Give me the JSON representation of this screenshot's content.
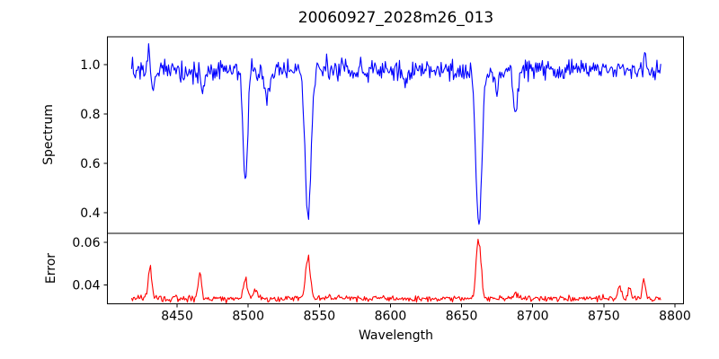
{
  "chart_data": {
    "type": "line",
    "title": "20060927_2028m26_013",
    "xlabel": "Wavelength",
    "grid": false,
    "legend": "none",
    "xlim": [
      8401,
      8806
    ],
    "x_ticks": [
      8450,
      8500,
      8550,
      8600,
      8650,
      8700,
      8750,
      8800
    ],
    "x_data_range": [
      8418,
      8790
    ],
    "n_points": 560,
    "panels": [
      {
        "name": "spectrum",
        "ylabel": "Spectrum",
        "color": "#0000ff",
        "ylim": [
          0.316,
          1.113
        ],
        "y_ticks": [
          1.0,
          0.8,
          0.6,
          0.4
        ],
        "y_tick_labels": [
          "1.0",
          "0.8",
          "0.6",
          "0.4"
        ],
        "continuum": 0.978,
        "noise_sigma": 0.021,
        "absorption_lines": [
          {
            "wavelength": 8498.0,
            "depth": 0.45,
            "sigma": 1.6
          },
          {
            "wavelength": 8542.1,
            "depth": 0.6,
            "sigma": 2.1
          },
          {
            "wavelength": 8662.1,
            "depth": 0.63,
            "sigma": 2.1
          },
          {
            "wavelength": 8513.0,
            "depth": 0.12,
            "sigma": 1.5
          },
          {
            "wavelength": 8688.0,
            "depth": 0.165,
            "sigma": 1.6
          },
          {
            "wavelength": 8675.0,
            "depth": 0.08,
            "sigma": 1.2
          },
          {
            "wavelength": 8468.0,
            "depth": 0.09,
            "sigma": 1.3
          },
          {
            "wavelength": 8433.0,
            "depth": 0.07,
            "sigma": 1.2
          },
          {
            "wavelength": 8610.0,
            "depth": 0.05,
            "sigma": 1.5
          },
          {
            "wavelength": 8582.0,
            "depth": 0.04,
            "sigma": 1.2
          }
        ],
        "emission_spikes": [
          {
            "wavelength": 8430.0,
            "height": 0.09,
            "sigma": 0.7
          },
          {
            "wavelength": 8779.0,
            "height": 0.08,
            "sigma": 0.7
          }
        ]
      },
      {
        "name": "error",
        "ylabel": "Error",
        "color": "#ff0000",
        "ylim": [
          0.031,
          0.0643
        ],
        "y_ticks": [
          0.06,
          0.04
        ],
        "y_tick_labels": [
          "0.06",
          "0.04"
        ],
        "baseline": 0.0335,
        "noise_sigma": 0.0007,
        "peaks": [
          {
            "wavelength": 8431.0,
            "height": 0.014,
            "sigma": 1.2
          },
          {
            "wavelength": 8466.0,
            "height": 0.011,
            "sigma": 1.2
          },
          {
            "wavelength": 8498.0,
            "height": 0.009,
            "sigma": 1.5
          },
          {
            "wavelength": 8505.0,
            "height": 0.0035,
            "sigma": 2.0
          },
          {
            "wavelength": 8542.0,
            "height": 0.0185,
            "sigma": 1.7
          },
          {
            "wavelength": 8662.0,
            "height": 0.0285,
            "sigma": 1.6
          },
          {
            "wavelength": 8688.0,
            "height": 0.0025,
            "sigma": 2.0
          },
          {
            "wavelength": 8761.0,
            "height": 0.0065,
            "sigma": 1.2
          },
          {
            "wavelength": 8768.0,
            "height": 0.0055,
            "sigma": 1.2
          },
          {
            "wavelength": 8778.0,
            "height": 0.0085,
            "sigma": 1.0
          }
        ]
      }
    ]
  }
}
